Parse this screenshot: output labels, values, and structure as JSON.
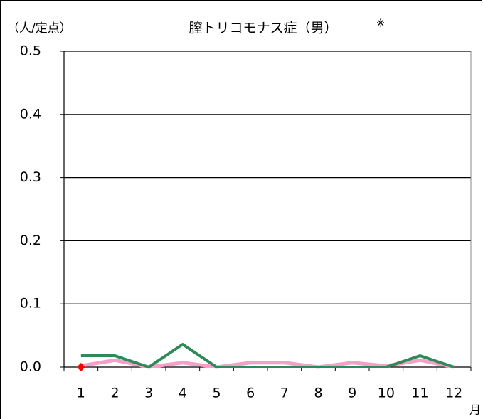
{
  "chart_data": {
    "type": "line",
    "title": "膣トリコモナス症（男）",
    "annotation": "※",
    "y_label": "（人/定点）",
    "x_label": "月",
    "categories": [
      "1",
      "2",
      "3",
      "4",
      "5",
      "6",
      "7",
      "8",
      "9",
      "10",
      "11",
      "12"
    ],
    "series": [
      {
        "color": "#f4a0c8",
        "values": [
          0.002,
          0.011,
          0,
          0.007,
          0,
          0.007,
          0.007,
          0,
          0.007,
          0.002,
          0.011,
          0
        ],
        "width": 5
      },
      {
        "color": "#2e8b57",
        "values": [
          0.018,
          0.018,
          0,
          0.036,
          0,
          0,
          0,
          0,
          0,
          0,
          0.018,
          0
        ],
        "width": 4
      },
      {
        "color": "#ff0000",
        "values": [
          0,
          null,
          null,
          null,
          null,
          null,
          null,
          null,
          null,
          null,
          null,
          null
        ],
        "marker": "diamond"
      }
    ],
    "ylim": [
      0,
      0.5
    ],
    "yticks": [
      {
        "value": 0,
        "label": "0.0"
      },
      0.1,
      0.2,
      0.3,
      0.4,
      0.5
    ],
    "grid": true
  }
}
